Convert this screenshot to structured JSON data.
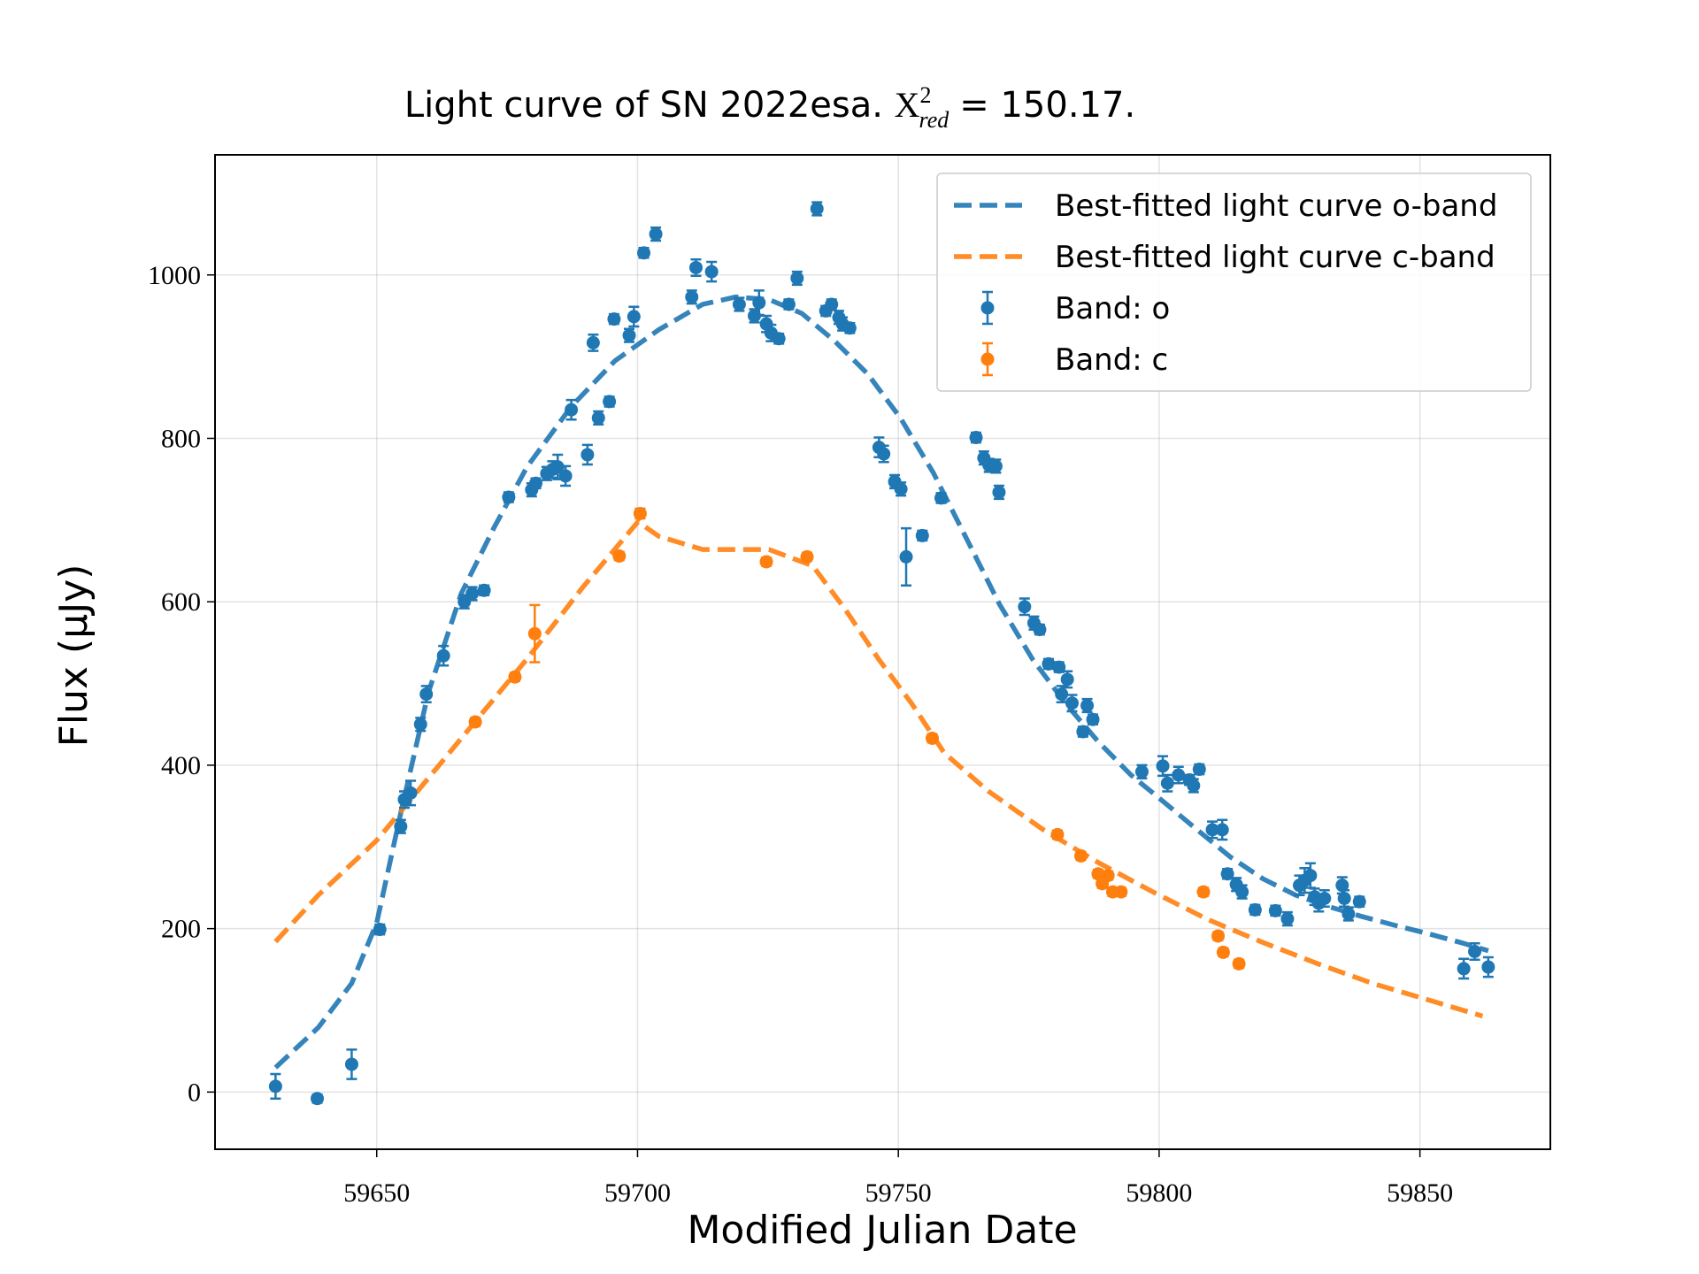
{
  "chart_data": {
    "type": "errorbar",
    "title_parts": [
      "Light curve of SN 2022esa.",
      "X",
      "2",
      "red",
      "= 150.17."
    ],
    "xlabel": "Modified Julian Date",
    "ylabel": "Flux (μJy)",
    "xlim": [
      59619,
      59875
    ],
    "ylim": [
      -70,
      1147
    ],
    "xticks": [
      59650,
      59700,
      59750,
      59800,
      59850
    ],
    "yticks": [
      0,
      200,
      400,
      600,
      800,
      1000
    ],
    "grid": true,
    "legend": "upper right",
    "series": [
      {
        "name": "Best-fitted light curve o-band",
        "style": "dashed-line",
        "color": "#1f77b4",
        "x": [
          59630.6,
          59638.8,
          59645.2,
          59650,
          59654.6,
          59659.9,
          59666.2,
          59672.5,
          59678.8,
          59687.3,
          59695.7,
          59704.1,
          59712.5,
          59718.8,
          59725.2,
          59731.5,
          59737.8,
          59744.1,
          59750.4,
          59756.7,
          59763.1,
          59769.4,
          59775.7,
          59782,
          59788.3,
          59794.6,
          59800.9,
          59807.3,
          59813.6,
          59819.9,
          59826.2,
          59832.5,
          59838.8,
          59845.2,
          59851.5,
          59857.8,
          59863.1
        ],
        "values": [
          30,
          79,
          133,
          207,
          341,
          489,
          610,
          691,
          765,
          839,
          895,
          933,
          964,
          973,
          970,
          953,
          919,
          879,
          825,
          758,
          677,
          597,
          530,
          476,
          429,
          388,
          355,
          321,
          288,
          261,
          241,
          227,
          215,
          204,
          194,
          183,
          173
        ]
      },
      {
        "name": "Best-fitted light curve c-band",
        "style": "dashed-line",
        "color": "#ff7f0e",
        "x": [
          59630.6,
          59638.8,
          59650,
          59657.8,
          59668.3,
          59678.8,
          59689.4,
          59700.1,
          59704.1,
          59712.5,
          59725.2,
          59733.6,
          59739.9,
          59746.2,
          59752.5,
          59758.8,
          59767.3,
          59777.8,
          59788.3,
          59798.8,
          59809.4,
          59819.9,
          59830.4,
          59840.9,
          59851.5,
          59862
        ],
        "values": [
          184,
          241,
          308,
          368,
          449,
          530,
          617,
          698,
          680,
          664,
          664,
          644,
          590,
          530,
          476,
          415,
          368,
          321,
          281,
          245,
          211,
          183,
          157,
          133,
          113,
          93
        ]
      },
      {
        "name": "Band: o",
        "style": "errorbar",
        "color": "#1f77b4",
        "x": [
          59630.6,
          59638.6,
          59645.2,
          59650.6,
          59654.6,
          59655.3,
          59656.5,
          59658.4,
          59659.5,
          59662.8,
          59666.8,
          59668.3,
          59670.6,
          59675.3,
          59679.7,
          59680.5,
          59682.6,
          59683.7,
          59684.7,
          59686.2,
          59687.3,
          59690.4,
          59691.5,
          59692.5,
          59694.6,
          59695.5,
          59698.4,
          59699.3,
          59701.2,
          59703.5,
          59710.4,
          59711.2,
          59714.2,
          59719.5,
          59722.4,
          59723.3,
          59724.7,
          59725.6,
          59727.1,
          59729.0,
          59730.6,
          59734.4,
          59736.1,
          59737.2,
          59738.6,
          59739.3,
          59740.7,
          59746.3,
          59747.2,
          59749.3,
          59750.5,
          59751.5,
          59754.6,
          59758.2,
          59764.9,
          59766.4,
          59767.4,
          59768.7,
          59769.3,
          59774.2,
          59776.0,
          59777.1,
          59778.8,
          59780.8,
          59781.3,
          59782.4,
          59783.3,
          59785.4,
          59786.2,
          59787.3,
          59796.7,
          59800.7,
          59801.6,
          59803.7,
          59805.8,
          59806.6,
          59807.7,
          59810.2,
          59812.1,
          59813.1,
          59814.8,
          59815.9,
          59818.4,
          59822.3,
          59824.6,
          59826.9,
          59827.9,
          59829.0,
          59829.8,
          59830.6,
          59831.7,
          59835.1,
          59835.5,
          59836.3,
          59838.4,
          59858.4,
          59860.5,
          59863.1
        ],
        "values": [
          7,
          -8,
          34,
          199,
          325,
          358,
          366,
          450,
          487,
          534,
          600,
          610,
          614,
          728,
          737,
          745,
          757,
          762,
          765,
          754,
          835,
          780,
          917,
          825,
          845,
          946,
          926,
          949,
          1027,
          1050,
          973,
          1009,
          1004,
          964,
          950,
          966,
          940,
          929,
          922,
          964,
          996,
          1081,
          956,
          964,
          948,
          940,
          935,
          789,
          781,
          747,
          738,
          655,
          681,
          727,
          801,
          776,
          767,
          766,
          734,
          594,
          574,
          566,
          524,
          520,
          487,
          505,
          476,
          441,
          473,
          456,
          392,
          399,
          378,
          388,
          382,
          375,
          395,
          321,
          321,
          267,
          254,
          245,
          223,
          222,
          212,
          253,
          259,
          265,
          239,
          231,
          237,
          253,
          237,
          218,
          233,
          151,
          172,
          153
        ],
        "errors": [
          15,
          5,
          18,
          6,
          8,
          10,
          15,
          8,
          10,
          12,
          8,
          8,
          6,
          6,
          8,
          6,
          8,
          10,
          15,
          12,
          12,
          12,
          10,
          8,
          6,
          6,
          8,
          12,
          6,
          8,
          8,
          10,
          12,
          8,
          8,
          15,
          10,
          10,
          6,
          6,
          8,
          8,
          6,
          6,
          8,
          8,
          6,
          12,
          10,
          8,
          8,
          35,
          6,
          6,
          6,
          8,
          8,
          8,
          8,
          10,
          8,
          6,
          6,
          6,
          10,
          10,
          10,
          6,
          8,
          6,
          8,
          12,
          10,
          10,
          6,
          8,
          6,
          10,
          12,
          6,
          8,
          8,
          6,
          6,
          8,
          12,
          15,
          15,
          10,
          10,
          10,
          10,
          10,
          8,
          6,
          12,
          10,
          12
        ]
      },
      {
        "name": "Band: c",
        "style": "errorbar",
        "color": "#ff7f0e",
        "x": [
          59668.9,
          59676.5,
          59680.3,
          59696.5,
          59700.5,
          59724.7,
          59732.5,
          59756.5,
          59780.5,
          59785.0,
          59788.3,
          59789.1,
          59790.2,
          59791.1,
          59792.7,
          59808.5,
          59811.3,
          59812.3,
          59815.3
        ],
        "values": [
          453,
          508,
          561,
          656,
          708,
          649,
          655,
          433,
          315,
          289,
          267,
          255,
          265,
          245,
          245,
          245,
          191,
          171,
          157
        ],
        "errors": [
          5,
          5,
          35,
          5,
          6,
          5,
          5,
          5,
          5,
          5,
          5,
          5,
          5,
          5,
          5,
          5,
          5,
          5,
          5
        ]
      }
    ]
  }
}
